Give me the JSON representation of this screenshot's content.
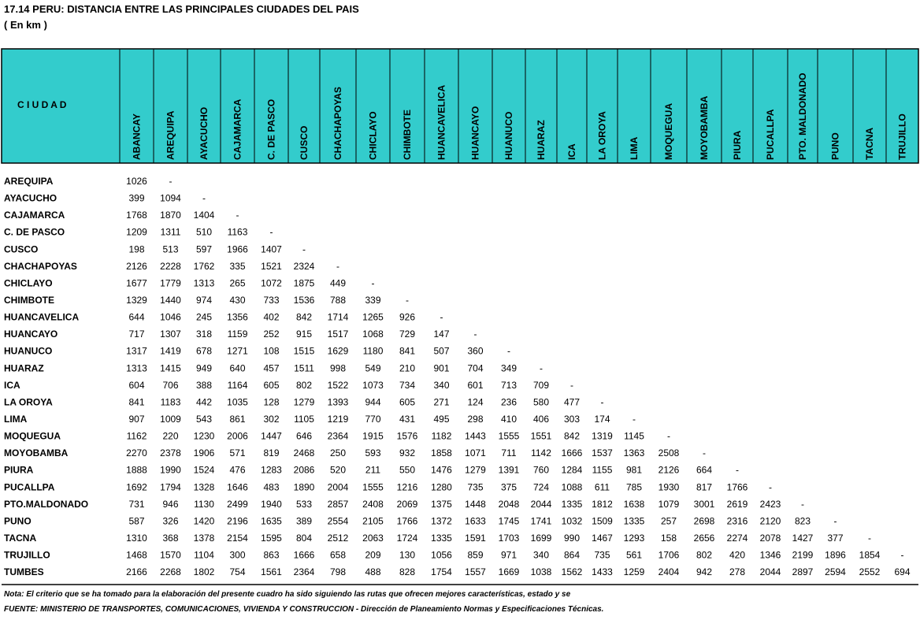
{
  "header": {
    "title": "17.14  PERU: DISTANCIA ENTRE LAS PRINCIPALES CIUDADES DEL PAIS",
    "subtitle": "( En km )"
  },
  "table": {
    "corner": "C I U D A D",
    "columns": [
      "ABANCAY",
      "AREQUIPA",
      "AYACUCHO",
      "CAJAMARCA",
      "C. DE PASCO",
      "CUSCO",
      "CHACHAPOYAS",
      "CHICLAYO",
      "CHIMBOTE",
      "HUANCAVELICA",
      "HUANCAYO",
      "HUANUCO",
      "HUARAZ",
      "ICA",
      "LA OROYA",
      "LIMA",
      "MOQUEGUA",
      "MOYOBAMBA",
      "PIURA",
      "PUCALLPA",
      "PTO. MALDONADO",
      "PUNO",
      "TACNA",
      "TRUJILLO"
    ],
    "rows": [
      {
        "label": "AREQUIPA",
        "cells": [
          1026,
          "-"
        ]
      },
      {
        "label": "AYACUCHO",
        "cells": [
          399,
          1094,
          "-"
        ]
      },
      {
        "label": "CAJAMARCA",
        "cells": [
          1768,
          1870,
          1404,
          "-"
        ]
      },
      {
        "label": "C. DE PASCO",
        "cells": [
          1209,
          1311,
          510,
          1163,
          "-"
        ]
      },
      {
        "label": "CUSCO",
        "cells": [
          198,
          513,
          597,
          1966,
          1407,
          "-"
        ]
      },
      {
        "label": "CHACHAPOYAS",
        "cells": [
          2126,
          2228,
          1762,
          335,
          1521,
          2324,
          "-"
        ]
      },
      {
        "label": "CHICLAYO",
        "cells": [
          1677,
          1779,
          1313,
          265,
          1072,
          1875,
          449,
          "-"
        ]
      },
      {
        "label": "CHIMBOTE",
        "cells": [
          1329,
          1440,
          974,
          430,
          733,
          1536,
          788,
          339,
          "-"
        ]
      },
      {
        "label": "HUANCAVELICA",
        "cells": [
          644,
          1046,
          245,
          1356,
          402,
          842,
          1714,
          1265,
          926,
          "-"
        ]
      },
      {
        "label": "HUANCAYO",
        "cells": [
          717,
          1307,
          318,
          1159,
          252,
          915,
          1517,
          1068,
          729,
          147,
          "-"
        ]
      },
      {
        "label": "HUANUCO",
        "cells": [
          1317,
          1419,
          678,
          1271,
          108,
          1515,
          1629,
          1180,
          841,
          507,
          360,
          "-"
        ]
      },
      {
        "label": "HUARAZ",
        "cells": [
          1313,
          1415,
          949,
          640,
          457,
          1511,
          998,
          549,
          210,
          901,
          704,
          349,
          "-"
        ]
      },
      {
        "label": "ICA",
        "cells": [
          604,
          706,
          388,
          1164,
          605,
          802,
          1522,
          1073,
          734,
          340,
          601,
          713,
          709,
          "-"
        ]
      },
      {
        "label": "LA OROYA",
        "cells": [
          841,
          1183,
          442,
          1035,
          128,
          1279,
          1393,
          944,
          605,
          271,
          124,
          236,
          580,
          477,
          "-"
        ]
      },
      {
        "label": "LIMA",
        "cells": [
          907,
          1009,
          543,
          861,
          302,
          1105,
          1219,
          770,
          431,
          495,
          298,
          410,
          406,
          303,
          174,
          "-"
        ]
      },
      {
        "label": "MOQUEGUA",
        "cells": [
          1162,
          220,
          1230,
          2006,
          1447,
          646,
          2364,
          1915,
          1576,
          1182,
          1443,
          1555,
          1551,
          842,
          1319,
          1145,
          "-"
        ]
      },
      {
        "label": "MOYOBAMBA",
        "cells": [
          2270,
          2378,
          1906,
          571,
          819,
          2468,
          250,
          593,
          932,
          1858,
          1071,
          711,
          1142,
          1666,
          1537,
          1363,
          2508,
          "-"
        ]
      },
      {
        "label": "PIURA",
        "cells": [
          1888,
          1990,
          1524,
          476,
          1283,
          2086,
          520,
          211,
          550,
          1476,
          1279,
          1391,
          760,
          1284,
          1155,
          981,
          2126,
          664,
          "-"
        ]
      },
      {
        "label": "PUCALLPA",
        "cells": [
          1692,
          1794,
          1328,
          1646,
          483,
          1890,
          2004,
          1555,
          1216,
          1280,
          735,
          375,
          724,
          1088,
          611,
          785,
          1930,
          817,
          1766,
          "-"
        ]
      },
      {
        "label": "PTO.MALDONADO",
        "cells": [
          731,
          946,
          1130,
          2499,
          1940,
          533,
          2857,
          2408,
          2069,
          1375,
          1448,
          2048,
          2044,
          1335,
          1812,
          1638,
          1079,
          3001,
          2619,
          2423,
          "-"
        ]
      },
      {
        "label": "PUNO",
        "cells": [
          587,
          326,
          1420,
          2196,
          1635,
          389,
          2554,
          2105,
          1766,
          1372,
          1633,
          1745,
          1741,
          1032,
          1509,
          1335,
          257,
          2698,
          2316,
          2120,
          823,
          "-"
        ]
      },
      {
        "label": "TACNA",
        "cells": [
          1310,
          368,
          1378,
          2154,
          1595,
          804,
          2512,
          2063,
          1724,
          1335,
          1591,
          1703,
          1699,
          990,
          1467,
          1293,
          158,
          2656,
          2274,
          2078,
          1427,
          377,
          "-"
        ]
      },
      {
        "label": "TRUJILLO",
        "cells": [
          1468,
          1570,
          1104,
          300,
          863,
          1666,
          658,
          209,
          130,
          1056,
          859,
          971,
          340,
          864,
          735,
          561,
          1706,
          802,
          420,
          1346,
          2199,
          1896,
          1854,
          "-"
        ]
      },
      {
        "label": "TUMBES",
        "cells": [
          2166,
          2268,
          1802,
          754,
          1561,
          2364,
          798,
          488,
          828,
          1754,
          1557,
          1669,
          1038,
          1562,
          1433,
          1259,
          2404,
          942,
          278,
          2044,
          2897,
          2594,
          2552,
          694
        ]
      }
    ]
  },
  "footer": {
    "note": "Nota: El criterio que se ha tomado para la elaboración del presente cuadro ha sido siguiendo las rutas que ofrecen mejores características, estado y se",
    "source": "FUENTE: MINISTERIO DE TRANSPORTES, COMUNICACIONES, VIVIENDA Y CONSTRUCCION - Dirección de Planeamiento Normas y Especificaciones Técnicas."
  }
}
